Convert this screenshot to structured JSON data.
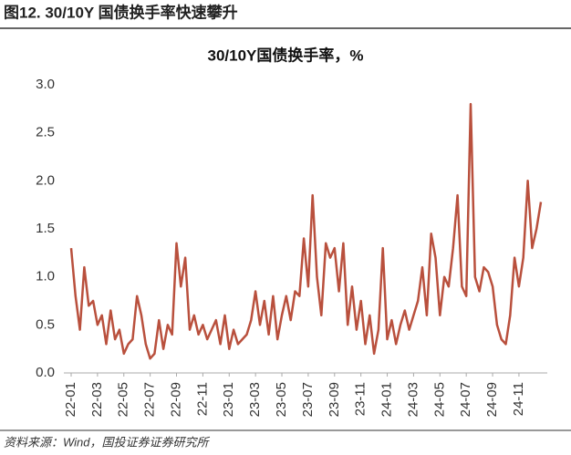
{
  "header": "图12. 30/10Y 国债换手率快速攀升",
  "source": "资料来源：Wind，国投证券证券研究所",
  "chart_data": {
    "type": "line",
    "title": "30/10Y国债换手率，%",
    "categories": [
      "22-01",
      null,
      null,
      null,
      null,
      null,
      "22-03",
      null,
      null,
      null,
      null,
      null,
      "22-05",
      null,
      null,
      null,
      null,
      null,
      "22-07",
      null,
      null,
      null,
      null,
      null,
      "22-09",
      null,
      null,
      null,
      null,
      null,
      "22-11",
      null,
      null,
      null,
      null,
      null,
      "23-01",
      null,
      null,
      null,
      null,
      null,
      "23-03",
      null,
      null,
      null,
      null,
      null,
      "23-05",
      null,
      null,
      null,
      null,
      null,
      "23-07",
      null,
      null,
      null,
      null,
      null,
      "23-09",
      null,
      null,
      null,
      null,
      null,
      "23-11",
      null,
      null,
      null,
      null,
      null,
      "24-01",
      null,
      null,
      null,
      null,
      null,
      "24-03",
      null,
      null,
      null,
      null,
      null,
      "24-05",
      null,
      null,
      null,
      null,
      null,
      "24-07",
      null,
      null,
      null,
      null,
      null,
      "24-09",
      null,
      null,
      null,
      null,
      null,
      "24-11",
      null,
      null,
      null,
      null,
      null
    ],
    "series": [
      {
        "name": "30/10Y国债换手率",
        "color": "#b9503d",
        "values": [
          1.3,
          0.8,
          0.45,
          1.1,
          0.7,
          0.75,
          0.5,
          0.6,
          0.3,
          0.65,
          0.35,
          0.45,
          0.2,
          0.3,
          0.35,
          0.8,
          0.6,
          0.3,
          0.15,
          0.2,
          0.55,
          0.25,
          0.5,
          0.4,
          1.35,
          0.9,
          1.2,
          0.45,
          0.6,
          0.4,
          0.5,
          0.35,
          0.45,
          0.55,
          0.3,
          0.6,
          0.25,
          0.45,
          0.3,
          0.35,
          0.4,
          0.55,
          0.85,
          0.5,
          0.75,
          0.4,
          0.8,
          0.35,
          0.6,
          0.8,
          0.55,
          0.85,
          0.8,
          1.4,
          0.9,
          1.85,
          1.0,
          0.6,
          1.35,
          1.2,
          1.3,
          0.85,
          1.35,
          0.5,
          0.9,
          0.45,
          0.75,
          0.3,
          0.6,
          0.2,
          0.45,
          1.3,
          0.35,
          0.55,
          0.3,
          0.5,
          0.65,
          0.45,
          0.6,
          0.75,
          1.1,
          0.6,
          1.45,
          1.2,
          0.6,
          1.0,
          0.9,
          1.3,
          1.85,
          0.9,
          0.8,
          2.8,
          1.0,
          0.85,
          1.1,
          1.05,
          0.9,
          0.5,
          0.35,
          0.3,
          0.6,
          1.2,
          0.9,
          1.2,
          2.0,
          1.3,
          1.5,
          1.78
        ]
      }
    ],
    "ylim": [
      0,
      3
    ],
    "yticks": [
      {
        "value": 0,
        "label": "0.0"
      },
      {
        "value": 0.5,
        "label": "0.5"
      },
      {
        "value": 1,
        "label": "1.0"
      },
      {
        "value": 1.5,
        "label": "1.5"
      },
      {
        "value": 2,
        "label": "2.0"
      },
      {
        "value": 2.5,
        "label": "2.5"
      },
      {
        "value": 3,
        "label": "3.0"
      }
    ],
    "grid": false
  }
}
